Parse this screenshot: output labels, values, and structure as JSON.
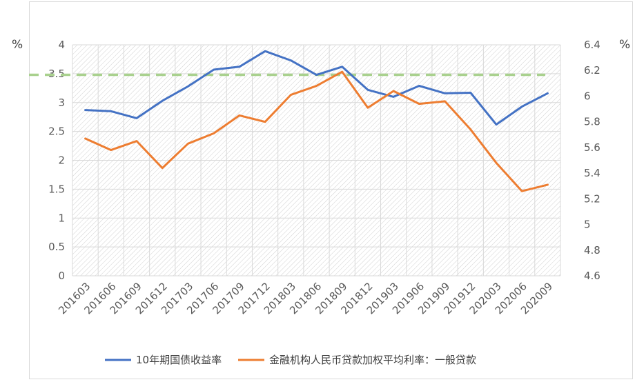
{
  "chart_data": {
    "type": "line",
    "categories": [
      "201603",
      "201606",
      "201609",
      "201612",
      "201703",
      "201706",
      "201709",
      "201712",
      "201803",
      "201806",
      "201809",
      "201812",
      "201903",
      "201906",
      "201909",
      "201912",
      "202003",
      "202006",
      "202009"
    ],
    "series": [
      {
        "name": "10年期国债收益率",
        "axis": "left",
        "color": "#4472c4",
        "values": [
          2.87,
          2.85,
          2.73,
          3.03,
          3.28,
          3.57,
          3.62,
          3.89,
          3.73,
          3.48,
          3.62,
          3.22,
          3.1,
          3.29,
          3.16,
          3.17,
          2.62,
          2.93,
          3.16
        ]
      },
      {
        "name": "金融机构人民币贷款加权平均利率：一般贷款",
        "axis": "right",
        "color": "#ed7d31",
        "values": [
          5.67,
          5.58,
          5.65,
          5.44,
          5.63,
          5.71,
          5.85,
          5.8,
          6.01,
          6.08,
          6.19,
          5.91,
          6.04,
          5.94,
          5.96,
          5.74,
          5.48,
          5.26,
          5.31
        ]
      }
    ],
    "reference_line": {
      "axis": "left",
      "value": 3.48,
      "color": "#a9d18e",
      "style": "dashed"
    },
    "y_left": {
      "unit_label": "%",
      "min": 0,
      "max": 4,
      "ticks": [
        "0",
        "0.5",
        "1",
        "1.5",
        "2",
        "2.5",
        "3",
        "3.5",
        "4"
      ]
    },
    "y_right": {
      "unit_label": "%",
      "min": 4.6,
      "max": 6.4,
      "ticks": [
        "4.6",
        "4.8",
        "5",
        "5.2",
        "5.4",
        "5.6",
        "5.8",
        "6",
        "6.2",
        "6.4"
      ]
    },
    "grid": true,
    "legend_position": "bottom"
  }
}
